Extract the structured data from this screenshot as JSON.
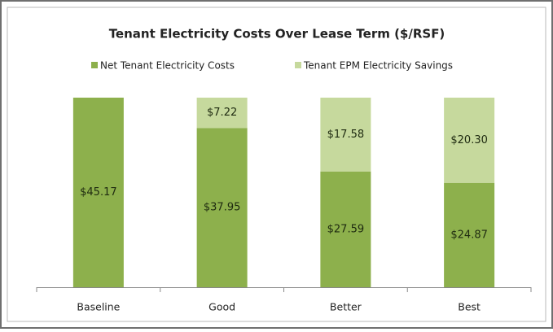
{
  "chart_data": {
    "type": "stacked_bar",
    "title": "Tenant Electricity Costs Over Lease Term ($/RSF)",
    "categories": [
      "Baseline",
      "Good",
      "Better",
      "Best"
    ],
    "series": [
      {
        "name": "Net Tenant Electricity Costs",
        "color": "#8db04c",
        "values": [
          45.17,
          37.95,
          27.59,
          24.87
        ],
        "value_labels": [
          "$45.17",
          "$37.95",
          "$27.59",
          "$24.87"
        ]
      },
      {
        "name": "Tenant EPM Electricity Savings",
        "color": "#c6d99d",
        "values": [
          null,
          7.22,
          17.58,
          20.3
        ],
        "value_labels": [
          null,
          "$7.22",
          "$17.58",
          "$20.30"
        ]
      }
    ],
    "legend": "top"
  }
}
